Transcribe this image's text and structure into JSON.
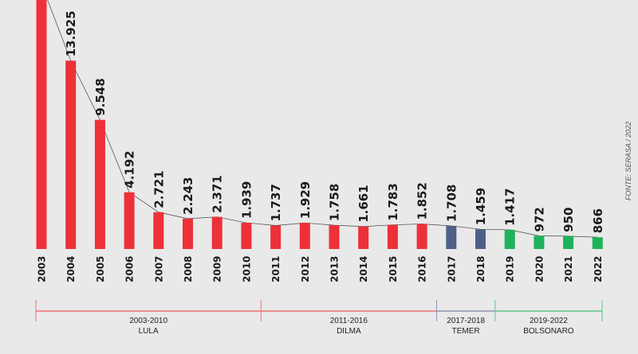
{
  "chart_data": {
    "type": "bar",
    "categories": [
      "2003",
      "2004",
      "2005",
      "2006",
      "2007",
      "2008",
      "2009",
      "2010",
      "2011",
      "2012",
      "2013",
      "2014",
      "2015",
      "2016",
      "2017",
      "2018",
      "2019",
      "2020",
      "2021",
      "2022"
    ],
    "values": [
      null,
      13925,
      9548,
      4192,
      2721,
      2243,
      2371,
      1939,
      1737,
      1929,
      1758,
      1661,
      1783,
      1852,
      1708,
      1459,
      1417,
      972,
      950,
      866
    ],
    "labels": [
      "",
      "13.925",
      "9.548",
      "4.192",
      "2.721",
      "2.243",
      "2.371",
      "1.939",
      "1.737",
      "1.929",
      "1.758",
      "1.661",
      "1.783",
      "1.852",
      "1.708",
      "1.459",
      "1.417",
      "972",
      "950",
      "866"
    ],
    "bar_colors": [
      "#ee3038",
      "#ee3038",
      "#ee3038",
      "#ee3038",
      "#ee3038",
      "#ee3038",
      "#ee3038",
      "#ee3038",
      "#ee3038",
      "#ee3038",
      "#ee3038",
      "#ee3038",
      "#ee3038",
      "#ee3038",
      "#4f6088",
      "#4f6088",
      "#1db35a",
      "#1db35a",
      "#1db35a",
      "#1db35a"
    ],
    "ylim": [
      0,
      19000
    ],
    "periods": [
      {
        "years": "2003-2010",
        "name": "LULA",
        "start": "2003",
        "end": "2010",
        "color": "#ee6f75"
      },
      {
        "years": "2011-2016",
        "name": "DILMA",
        "start": "2011",
        "end": "2016",
        "color": "#ee6f75"
      },
      {
        "years": "2017-2018",
        "name": "TEMER",
        "start": "2017",
        "end": "2018",
        "color": "#8d96b4"
      },
      {
        "years": "2019-2022",
        "name": "BOLSONARO",
        "start": "2019",
        "end": "2022",
        "color": "#5cc68c"
      }
    ],
    "source": "FONTE: SERASA  /  2022"
  }
}
